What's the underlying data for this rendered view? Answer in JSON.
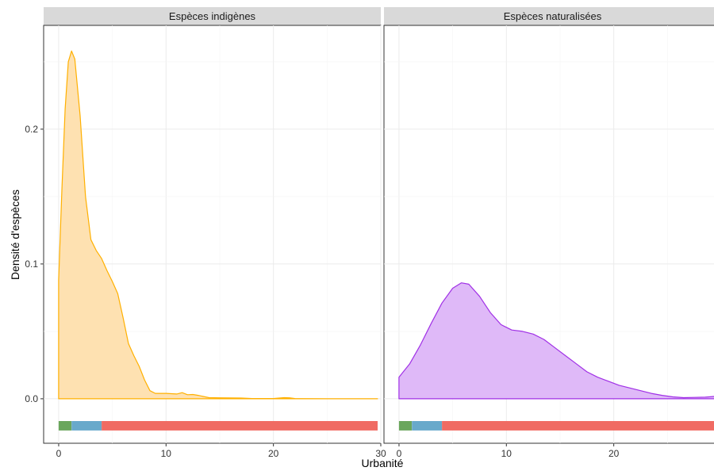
{
  "chart_data": {
    "type": "area",
    "xlabel": "Urbanité",
    "ylabel": "Densité d'espèces",
    "xlim": [
      -1.4,
      30
    ],
    "ylim": [
      -0.033,
      0.277
    ],
    "x_ticks": [
      0,
      10,
      20,
      30
    ],
    "y_ticks": [
      0.0,
      0.1,
      0.2
    ],
    "x_tick_labels": [
      "0",
      "10",
      "20",
      "30"
    ],
    "y_tick_labels": [
      "0.0",
      "0.1",
      "0.2"
    ],
    "grid": true,
    "legend": "none",
    "facets": [
      {
        "label": "Espèces indigènes",
        "fill": "#fee1b1",
        "stroke": "#ffb000",
        "points": [
          [
            0.0,
            0.088
          ],
          [
            0.3,
            0.155
          ],
          [
            0.6,
            0.215
          ],
          [
            0.9,
            0.25
          ],
          [
            1.2,
            0.258
          ],
          [
            1.5,
            0.252
          ],
          [
            2.0,
            0.21
          ],
          [
            2.5,
            0.15
          ],
          [
            3.0,
            0.118
          ],
          [
            3.5,
            0.11
          ],
          [
            4.0,
            0.104
          ],
          [
            4.5,
            0.095
          ],
          [
            5.0,
            0.087
          ],
          [
            5.5,
            0.078
          ],
          [
            6.0,
            0.06
          ],
          [
            6.5,
            0.041
          ],
          [
            7.0,
            0.032
          ],
          [
            7.5,
            0.024
          ],
          [
            8.0,
            0.014
          ],
          [
            8.5,
            0.006
          ],
          [
            9.0,
            0.004
          ],
          [
            10.0,
            0.004
          ],
          [
            11.0,
            0.0035
          ],
          [
            11.5,
            0.0045
          ],
          [
            12.0,
            0.003
          ],
          [
            12.5,
            0.0032
          ],
          [
            13.0,
            0.0025
          ],
          [
            14.0,
            0.0008
          ],
          [
            15.0,
            0.0007
          ],
          [
            16.0,
            0.0006
          ],
          [
            17.0,
            0.0005
          ],
          [
            18.0,
            0.0002
          ],
          [
            20.0,
            0.0002
          ],
          [
            21.0,
            0.0008
          ],
          [
            21.5,
            0.0007
          ],
          [
            22.0,
            0.0002
          ],
          [
            25.0,
            0.0
          ],
          [
            29.7,
            0.0
          ]
        ],
        "urbanity_bar": [
          {
            "from": 0.0,
            "to": 1.2,
            "color": "#6aa65c"
          },
          {
            "from": 1.2,
            "to": 4.0,
            "color": "#68a9cb"
          },
          {
            "from": 4.0,
            "to": 29.7,
            "color": "#f06b63"
          }
        ]
      },
      {
        "label": "Espèces naturalisées",
        "fill": "#dfb9f8",
        "stroke": "#a030e6",
        "points": [
          [
            0.0,
            0.016
          ],
          [
            1.0,
            0.026
          ],
          [
            2.0,
            0.04
          ],
          [
            3.0,
            0.056
          ],
          [
            4.0,
            0.071
          ],
          [
            5.0,
            0.082
          ],
          [
            5.8,
            0.086
          ],
          [
            6.5,
            0.085
          ],
          [
            7.5,
            0.076
          ],
          [
            8.5,
            0.064
          ],
          [
            9.5,
            0.055
          ],
          [
            10.5,
            0.051
          ],
          [
            11.5,
            0.05
          ],
          [
            12.5,
            0.048
          ],
          [
            13.5,
            0.044
          ],
          [
            14.5,
            0.038
          ],
          [
            15.5,
            0.032
          ],
          [
            16.5,
            0.026
          ],
          [
            17.5,
            0.02
          ],
          [
            18.5,
            0.016
          ],
          [
            19.5,
            0.013
          ],
          [
            20.5,
            0.01
          ],
          [
            21.5,
            0.008
          ],
          [
            22.5,
            0.006
          ],
          [
            23.5,
            0.004
          ],
          [
            24.5,
            0.0025
          ],
          [
            25.5,
            0.0014
          ],
          [
            26.5,
            0.0008
          ],
          [
            27.5,
            0.001
          ],
          [
            28.5,
            0.0012
          ],
          [
            29.5,
            0.0018
          ],
          [
            29.7,
            0.002
          ]
        ],
        "urbanity_bar": [
          {
            "from": 0.0,
            "to": 1.2,
            "color": "#6aa65c"
          },
          {
            "from": 1.2,
            "to": 4.0,
            "color": "#68a9cb"
          },
          {
            "from": 4.0,
            "to": 29.7,
            "color": "#f06b63"
          }
        ]
      }
    ]
  }
}
